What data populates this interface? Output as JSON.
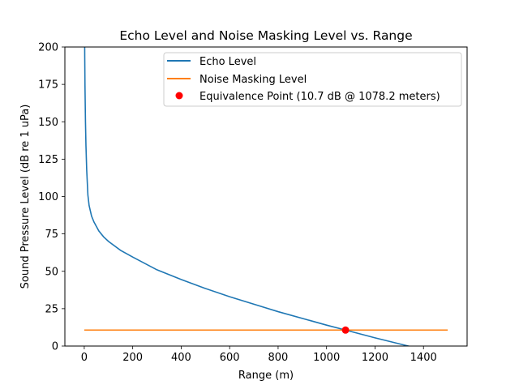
{
  "chart_data": {
    "type": "line",
    "title": "Echo Level and Noise Masking Level vs. Range",
    "xlabel": "Range (m)",
    "ylabel": "Sound Pressure Level (dB re 1 uPa)",
    "xlim": [
      -80,
      1580
    ],
    "ylim": [
      0,
      200
    ],
    "xticks": [
      0,
      200,
      400,
      600,
      800,
      1000,
      1200,
      1400
    ],
    "yticks": [
      0,
      25,
      50,
      75,
      100,
      125,
      150,
      175,
      200
    ],
    "grid": false,
    "legend_position": "top-right",
    "series": [
      {
        "name": "Echo Level",
        "color": "#1f77b4",
        "x": [
          1,
          2,
          3,
          5,
          7,
          10,
          15,
          20,
          30,
          40,
          50,
          60,
          80,
          100,
          150,
          200,
          300,
          400,
          500,
          600,
          800,
          1000,
          1078.2,
          1200,
          1300,
          1350
        ],
        "y": [
          229,
          194,
          174,
          150,
          134,
          118,
          101,
          94,
          87,
          83,
          80,
          77,
          73,
          70,
          64,
          59.5,
          51,
          44.5,
          38.5,
          33,
          23,
          14,
          10.7,
          5.5,
          1.5,
          -0.5
        ]
      },
      {
        "name": "Noise Masking Level",
        "color": "#ff7f0e",
        "x": [
          0,
          1500
        ],
        "y": [
          10.7,
          10.7
        ]
      }
    ],
    "points": [
      {
        "name": "Equivalence Point (10.7 dB @ 1078.2 meters)",
        "color": "#ff0000",
        "x": 1078.2,
        "y": 10.7
      }
    ]
  }
}
